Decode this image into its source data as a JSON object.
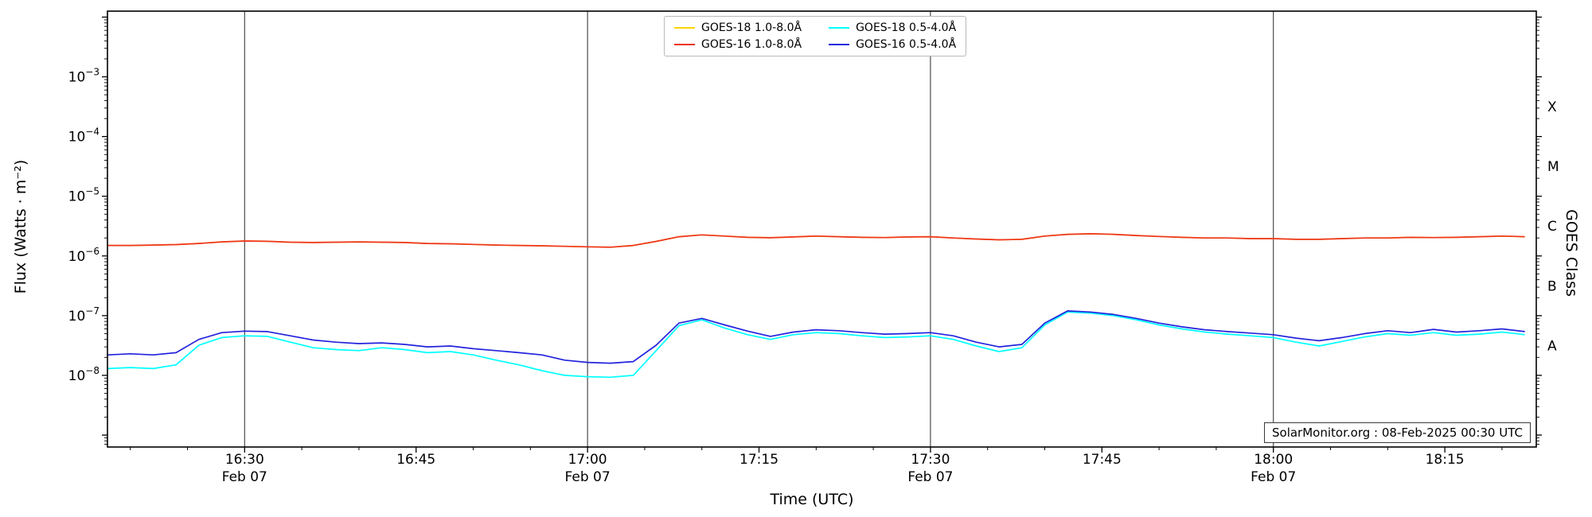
{
  "chart_data": {
    "type": "line",
    "title": "",
    "xlabel": "Time (UTC)",
    "ylabel": "Flux (Watts · m⁻²)",
    "y2label": "GOES Class",
    "annotation": "SolarMonitor.org : 08-Feb-2025 00:30 UTC",
    "y_scale": "log",
    "ylim": [
      1e-09,
      0.01
    ],
    "x_date": "Feb 07",
    "x_start_time": "16:18",
    "x_end_time": "18:23",
    "y_ticks": [
      {
        "value": 1e-08,
        "base": "10",
        "exponent": "−8"
      },
      {
        "value": 1e-07,
        "base": "10",
        "exponent": "−7"
      },
      {
        "value": 1e-06,
        "base": "10",
        "exponent": "−6"
      },
      {
        "value": 1e-05,
        "base": "10",
        "exponent": "−5"
      },
      {
        "value": 0.0001,
        "base": "10",
        "exponent": "−4"
      },
      {
        "value": 0.001,
        "base": "10",
        "exponent": "−3"
      }
    ],
    "goes_classes": [
      {
        "label": "A",
        "log_center": -7.5
      },
      {
        "label": "B",
        "log_center": -6.5
      },
      {
        "label": "C",
        "log_center": -5.5
      },
      {
        "label": "M",
        "log_center": -4.5
      },
      {
        "label": "X",
        "log_center": -3.5
      }
    ],
    "x_ticks": [
      {
        "minutes": 12,
        "label": "16:30",
        "date": "Feb 07"
      },
      {
        "minutes": 27,
        "label": "16:45",
        "date": ""
      },
      {
        "minutes": 42,
        "label": "17:00",
        "date": "Feb 07"
      },
      {
        "minutes": 57,
        "label": "17:15",
        "date": ""
      },
      {
        "minutes": 72,
        "label": "17:30",
        "date": "Feb 07"
      },
      {
        "minutes": 87,
        "label": "17:45",
        "date": ""
      },
      {
        "minutes": 102,
        "label": "18:00",
        "date": "Feb 07"
      },
      {
        "minutes": 117,
        "label": "18:15",
        "date": ""
      }
    ],
    "gridline_minutes": [
      12,
      42,
      72,
      102
    ],
    "times_min": [
      0,
      2,
      4,
      6,
      8,
      10,
      12,
      14,
      16,
      18,
      20,
      22,
      24,
      26,
      28,
      30,
      32,
      34,
      36,
      38,
      40,
      42,
      44,
      46,
      48,
      50,
      52,
      54,
      56,
      58,
      60,
      62,
      64,
      66,
      68,
      70,
      72,
      74,
      76,
      78,
      80,
      82,
      84,
      86,
      88,
      90,
      92,
      94,
      96,
      98,
      100,
      102,
      104,
      106,
      108,
      110,
      112,
      114,
      116,
      118,
      120,
      122,
      124
    ],
    "series": [
      {
        "name": "GOES-18 1.0-8.0Å",
        "color": "#ffd400",
        "values": [
          1.5e-06,
          1.5e-06,
          1.52e-06,
          1.55e-06,
          1.62e-06,
          1.72e-06,
          1.78e-06,
          1.76e-06,
          1.7e-06,
          1.68e-06,
          1.7e-06,
          1.72e-06,
          1.7e-06,
          1.68e-06,
          1.62e-06,
          1.6e-06,
          1.56e-06,
          1.52e-06,
          1.5e-06,
          1.48e-06,
          1.45e-06,
          1.42e-06,
          1.4e-06,
          1.5e-06,
          1.75e-06,
          2.1e-06,
          2.25e-06,
          2.15e-06,
          2.05e-06,
          2.02e-06,
          2.08e-06,
          2.15e-06,
          2.1e-06,
          2.05e-06,
          2.03e-06,
          2.08e-06,
          2.1e-06,
          2e-06,
          1.92e-06,
          1.86e-06,
          1.9e-06,
          2.15e-06,
          2.3e-06,
          2.35e-06,
          2.3e-06,
          2.2e-06,
          2.12e-06,
          2.05e-06,
          2e-06,
          2e-06,
          1.95e-06,
          1.95e-06,
          1.9e-06,
          1.9e-06,
          1.95e-06,
          2e-06,
          2e-06,
          2.05e-06,
          2.03e-06,
          2.05e-06,
          2.1e-06,
          2.15e-06,
          2.1e-06
        ]
      },
      {
        "name": "GOES-16 1.0-8.0Å",
        "color": "#ee3420",
        "values": [
          1.5e-06,
          1.5e-06,
          1.52e-06,
          1.55e-06,
          1.62e-06,
          1.72e-06,
          1.78e-06,
          1.76e-06,
          1.7e-06,
          1.68e-06,
          1.7e-06,
          1.72e-06,
          1.7e-06,
          1.68e-06,
          1.62e-06,
          1.6e-06,
          1.56e-06,
          1.52e-06,
          1.5e-06,
          1.48e-06,
          1.45e-06,
          1.42e-06,
          1.4e-06,
          1.5e-06,
          1.75e-06,
          2.1e-06,
          2.25e-06,
          2.15e-06,
          2.05e-06,
          2.02e-06,
          2.08e-06,
          2.15e-06,
          2.1e-06,
          2.05e-06,
          2.03e-06,
          2.08e-06,
          2.1e-06,
          2e-06,
          1.92e-06,
          1.86e-06,
          1.9e-06,
          2.15e-06,
          2.3e-06,
          2.35e-06,
          2.3e-06,
          2.2e-06,
          2.12e-06,
          2.05e-06,
          2e-06,
          2e-06,
          1.95e-06,
          1.95e-06,
          1.9e-06,
          1.9e-06,
          1.95e-06,
          2e-06,
          2e-06,
          2.05e-06,
          2.03e-06,
          2.05e-06,
          2.1e-06,
          2.15e-06,
          2.1e-06
        ]
      },
      {
        "name": "GOES-18 0.5-4.0Å",
        "color": "#00ffff",
        "values": [
          1.3e-08,
          1.35e-08,
          1.3e-08,
          1.5e-08,
          3.2e-08,
          4.3e-08,
          4.6e-08,
          4.5e-08,
          3.6e-08,
          2.9e-08,
          2.7e-08,
          2.6e-08,
          2.9e-08,
          2.7e-08,
          2.4e-08,
          2.5e-08,
          2.2e-08,
          1.8e-08,
          1.5e-08,
          1.2e-08,
          1e-08,
          9.5e-09,
          9.3e-09,
          1e-08,
          2.6e-08,
          6.8e-08,
          8.5e-08,
          6.2e-08,
          4.8e-08,
          4e-08,
          4.8e-08,
          5.2e-08,
          5e-08,
          4.6e-08,
          4.3e-08,
          4.4e-08,
          4.6e-08,
          4e-08,
          3.1e-08,
          2.5e-08,
          2.9e-08,
          7e-08,
          1.15e-07,
          1.1e-07,
          1e-07,
          8.5e-08,
          7e-08,
          6e-08,
          5.3e-08,
          4.9e-08,
          4.6e-08,
          4.3e-08,
          3.6e-08,
          3.1e-08,
          3.7e-08,
          4.4e-08,
          5e-08,
          4.7e-08,
          5.2e-08,
          4.7e-08,
          4.9e-08,
          5.3e-08,
          4.8e-08
        ]
      },
      {
        "name": "GOES-16 0.5-4.0Å",
        "color": "#2323dd",
        "values": [
          2.2e-08,
          2.3e-08,
          2.2e-08,
          2.4e-08,
          4e-08,
          5.2e-08,
          5.5e-08,
          5.4e-08,
          4.6e-08,
          3.9e-08,
          3.6e-08,
          3.4e-08,
          3.5e-08,
          3.3e-08,
          3e-08,
          3.1e-08,
          2.8e-08,
          2.6e-08,
          2.4e-08,
          2.2e-08,
          1.8e-08,
          1.65e-08,
          1.6e-08,
          1.7e-08,
          3.2e-08,
          7.5e-08,
          9e-08,
          7e-08,
          5.5e-08,
          4.5e-08,
          5.3e-08,
          5.8e-08,
          5.6e-08,
          5.2e-08,
          4.9e-08,
          5e-08,
          5.2e-08,
          4.6e-08,
          3.6e-08,
          3e-08,
          3.3e-08,
          7.5e-08,
          1.2e-07,
          1.15e-07,
          1.05e-07,
          9e-08,
          7.5e-08,
          6.5e-08,
          5.8e-08,
          5.4e-08,
          5.1e-08,
          4.8e-08,
          4.2e-08,
          3.8e-08,
          4.3e-08,
          5e-08,
          5.6e-08,
          5.2e-08,
          5.9e-08,
          5.3e-08,
          5.6e-08,
          6e-08,
          5.4e-08
        ]
      }
    ],
    "legend": {
      "position": "top-center",
      "entries": [
        {
          "label": "GOES-18 1.0-8.0Å",
          "color": "#ffd400"
        },
        {
          "label": "GOES-16 1.0-8.0Å",
          "color": "#ee3420"
        },
        {
          "label": "GOES-18 0.5-4.0Å",
          "color": "#00ffff"
        },
        {
          "label": "GOES-16 0.5-4.0Å",
          "color": "#2323dd"
        }
      ]
    }
  }
}
